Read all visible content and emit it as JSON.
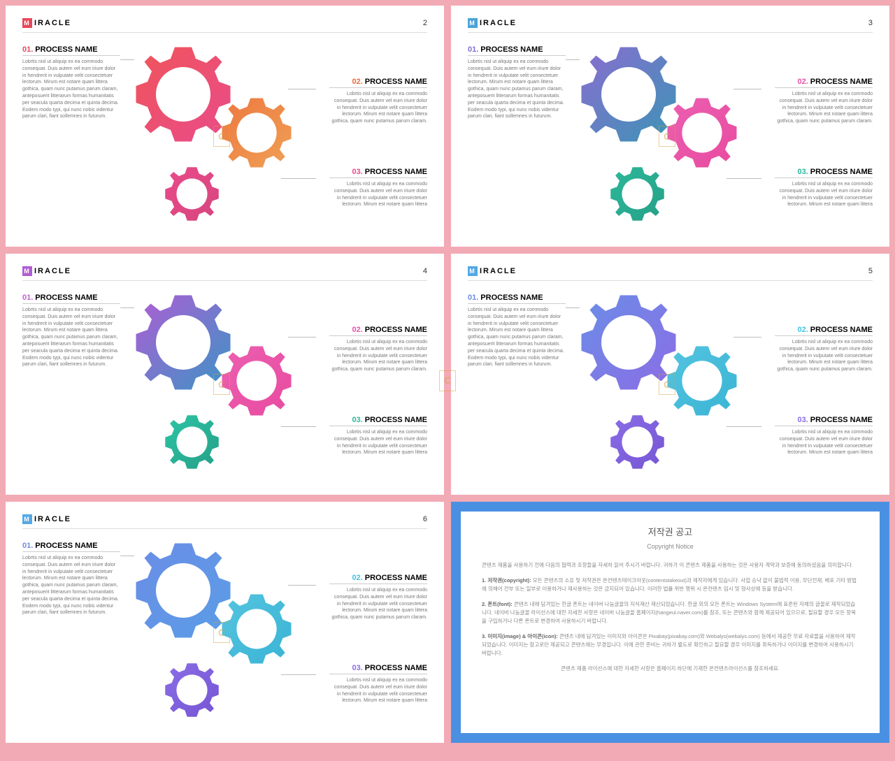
{
  "brand": {
    "letter": "M",
    "text": "IRACLE"
  },
  "slides": [
    {
      "page": 2,
      "brand_icon_bg": "#e8475a",
      "proc1": {
        "num": "01.",
        "num_color": "#e8475a",
        "title": "PROCESS NAME",
        "text": "Lobrtis nisl ut aliquip ex ea commodo consequat. Duis autem vel eum iriure dolor in hendrerit in vulputate velit consectetuer lectorum. Mirum est notare quam littera gothica, quam nunc putamus parum claram, anteposuerit litterarum formas humanitatis per seacula quarta decima et quinta decima. Eodem modo typi, qui nunc nobis videntur parum clari, fiant sollemnes in futurum."
      },
      "proc2": {
        "num": "02.",
        "num_color": "#ed6b3a",
        "title": "PROCESS NAME",
        "text": "Lobrtis nisl ut aliquip ex ea commodo consequat. Duis autem vel eum iriure dolor in hendrerit in vulputate velit consectetuer lectorum. Mirum est notare quam littera gothica, quam nunc putamus parum claram."
      },
      "proc3": {
        "num": "03.",
        "num_color": "#e94b8a",
        "title": "PROCESS NAME",
        "text": "Lobrtis nisl ut aliquip ex ea commodo consequat. Duis autem vel eum iriure dolor in hendrerit in vulputate velit consectetuer lectorum. Mirum est notare quam littera"
      },
      "gear_colors": {
        "g1a": "#f0555a",
        "g1b": "#e94b8a",
        "g2a": "#ed7840",
        "g2b": "#f0a055",
        "g3a": "#e94b8a",
        "g3b": "#d6457e"
      }
    },
    {
      "page": 3,
      "brand_icon_bg": "#4aa3d6",
      "proc1": {
        "num": "01.",
        "num_color": "#7b6fd4",
        "title": "PROCESS NAME",
        "text": "Lobrtis nisl ut aliquip ex ea commodo consequat. Duis autem vel eum iriure dolor in hendrerit in vulputate velit consectetuer lectorum. Mirum est notare quam littera gothica, quam nunc putamus parum claram, anteposuerit litterarum formas humanitatis per seacula quarta decima et quinta decima. Eodem modo typi, qui nunc nobis videntur parum clari, fiant sollemnes in futurum."
      },
      "proc2": {
        "num": "02.",
        "num_color": "#e954a8",
        "title": "PROCESS NAME",
        "text": "Lobrtis nisl ut aliquip ex ea commodo consequat. Duis autem vel eum iriure dolor in hendrerit in vulputate velit consectetuer lectorum. Mirum est notare quam littera gothica, quam nunc putamus parum claram."
      },
      "proc3": {
        "num": "03.",
        "num_color": "#2db89a",
        "title": "PROCESS NAME",
        "text": "Lobrtis nisl ut aliquip ex ea commodo consequat. Duis autem vel eum iriure dolor in hendrerit in vulputate velit consectetuer lectorum. Mirum est notare quam littera"
      },
      "gear_colors": {
        "g1a": "#8b6dd0",
        "g1b": "#3a95b5",
        "g2a": "#ec5fb0",
        "g2b": "#e84ba0",
        "g3a": "#2db89a",
        "g3b": "#25a087"
      }
    },
    {
      "page": 4,
      "brand_icon_bg": "#b05dd4",
      "proc1": {
        "num": "01.",
        "num_color": "#c85dd4",
        "title": "PROCESS NAME",
        "text": "Lobrtis nisl ut aliquip ex ea commodo consequat. Duis autem vel eum iriure dolor in hendrerit in vulputate velit consectetuer lectorum. Mirum est notare quam littera gothica, quam nunc putamus parum claram, anteposuerit litterarum formas humanitatis per seacula quarta decima et quinta decima. Eodem modo typi, qui nunc nobis videntur parum clari, fiant sollemnes in futurum."
      },
      "proc2": {
        "num": "02.",
        "num_color": "#e954a8",
        "title": "PROCESS NAME",
        "text": "Lobrtis nisl ut aliquip ex ea commodo consequat. Duis autem vel eum iriure dolor in hendrerit in vulputate velit consectetuer lectorum. Mirum est notare quam littera gothica, quam nunc putamus parum claram."
      },
      "proc3": {
        "num": "03.",
        "num_color": "#2db89a",
        "title": "PROCESS NAME",
        "text": "Lobrtis nisl ut aliquip ex ea commodo consequat. Duis autem vel eum iriure dolor in hendrerit in vulputate velit consectetuer lectorum. Mirum est notare quam littera"
      },
      "gear_colors": {
        "g1a": "#b05dd4",
        "g1b": "#3a95c5",
        "g2a": "#ec5fb0",
        "g2b": "#e84ba0",
        "g3a": "#2dc4a5",
        "g3b": "#25a087"
      }
    },
    {
      "page": 5,
      "brand_icon_bg": "#54a8e6",
      "proc1": {
        "num": "01.",
        "num_color": "#6b8de6",
        "title": "PROCESS NAME",
        "text": "Lobrtis nisl ut aliquip ex ea commodo consequat. Duis autem vel eum iriure dolor in hendrerit in vulputate velit consectetuer lectorum. Mirum est notare quam littera gothica, quam nunc putamus parum claram, anteposuerit litterarum formas humanitatis per seacula quarta decima et quinta decima. Eodem modo typi, qui nunc nobis videntur parum clari, fiant sollemnes in futurum."
      },
      "proc2": {
        "num": "02.",
        "num_color": "#44c4e0",
        "title": "PROCESS NAME",
        "text": "Lobrtis nisl ut aliquip ex ea commodo consequat. Duis autem vel eum iriure dolor in hendrerit in vulputate velit consectetuer lectorum. Mirum est notare quam littera gothica, quam nunc putamus parum claram."
      },
      "proc3": {
        "num": "03.",
        "num_color": "#8b6de6",
        "title": "PROCESS NAME",
        "text": "Lobrtis nisl ut aliquip ex ea commodo consequat. Duis autem vel eum iriure dolor in hendrerit in vulputate velit consectetuer lectorum. Mirum est notare quam littera"
      },
      "gear_colors": {
        "g1a": "#6b8de6",
        "g1b": "#8b6de6",
        "g2a": "#54c4e0",
        "g2b": "#3ab4d4",
        "g3a": "#8b6de6",
        "g3b": "#7555d4"
      }
    },
    {
      "page": 6,
      "brand_icon_bg": "#54a8e6",
      "proc1": {
        "num": "01.",
        "num_color": "#6b8de6",
        "title": "PROCESS NAME",
        "text": "Lobrtis nisl ut aliquip ex ea commodo consequat. Duis autem vel eum iriure dolor in hendrerit in vulputate velit consectetuer lectorum. Mirum est notare quam littera gothica, quam nunc putamus parum claram, anteposuerit litterarum formas humanitatis per seacula quarta decima et quinta decima. Eodem modo typi, qui nunc nobis videntur parum clari, fiant sollemnes in futurum."
      },
      "proc2": {
        "num": "02.",
        "num_color": "#44c4e0",
        "title": "PROCESS NAME",
        "text": "Lobrtis nisl ut aliquip ex ea commodo consequat. Duis autem vel eum iriure dolor in hendrerit in vulputate velit consectetuer lectorum. Mirum est notare quam littera gothica, quam nunc putamus parum claram."
      },
      "proc3": {
        "num": "03.",
        "num_color": "#8b6de6",
        "title": "PROCESS NAME",
        "text": "Lobrtis nisl ut aliquip ex ea commodo consequat. Duis autem vel eum iriure dolor in hendrerit in vulputate velit consectetuer lectorum. Mirum est notare quam littera"
      },
      "gear_colors": {
        "g1a": "#6b8de6",
        "g1b": "#5a9de6",
        "g2a": "#54c4e0",
        "g2b": "#3ab4d4",
        "g3a": "#8b6de6",
        "g3b": "#7555d4"
      }
    }
  ],
  "copyright": {
    "title": "저작권 공고",
    "subtitle": "Copyright Notice",
    "intro": "콘텐츠 제품을 사용하기 전에 다음의 협력과 조항들을 자세히 읽어 주시기 바랍니다. 귀하가 이 콘텐츠 제품을 사용하는 것은 사용자 계약과 보증에 동의하셨음을 의미합니다.",
    "p1_title": "1. 저작권(copyright):",
    "p1": "모든 콘텐츠의 소유 및 저작권은 온컨텐츠테이크아웃(contentstakeout)과 제작자에게 있습니다. 사업 승낙 없이 불법적 이용, 무단전재, 배포 기타 방법에 의해어 전부 또는 일부로 이용하거나 재사용하는 것은 금지되어 있습니다. 이러한 법률 위반 행위 시 온컨텐츠 임시 및 형사상에 등을 받습니다.",
    "p2_title": "2. 폰트(font):",
    "p2": "콘텐츠 내에 담겨있는 한글 폰트는 네이버 나눔글꼴의 지식재산 재산되었습니다. 한글 외의 모든 폰트는 Windows System에 표준된 자체의 글꼴로 제작되었습니다. 네이버 나눔글꼴 라이선스에 대한 자세한 사항은 네이버 나눔글꼴 홈페이지(hangeul.naver.com)를 참조, 또는 콘텐츠와 함께 제공되어 있으므로, 필요할 경우 모든 항목을 구입하거나 다른 폰트로 변경하여 사용하시기 바랍니다.",
    "p3_title": "3. 이미지(image) & 아이콘(icon):",
    "p3": "콘텐츠 내에 담겨있는 이미지와 아이콘은 Pixabay(pixabay.com)와 Webalys(webalys.com) 등에서 제공한 무료 자료들을 사용하여 제작되었습니다. 이미지는 참고로만 제공되고 콘텐츠에는 무경입니다. 이에 관한 준비는 귀하가 별도로 확인하고 필요할 경우 이미지를 취득하거나 이미지를 변경하여 사용하시기 바랍니다.",
    "footer": "콘텐츠 제품 라이선스에 대한 자세한 사항은 홈페이지 하단에 기재한 온컨텐츠라이선스를 참조하세요."
  }
}
